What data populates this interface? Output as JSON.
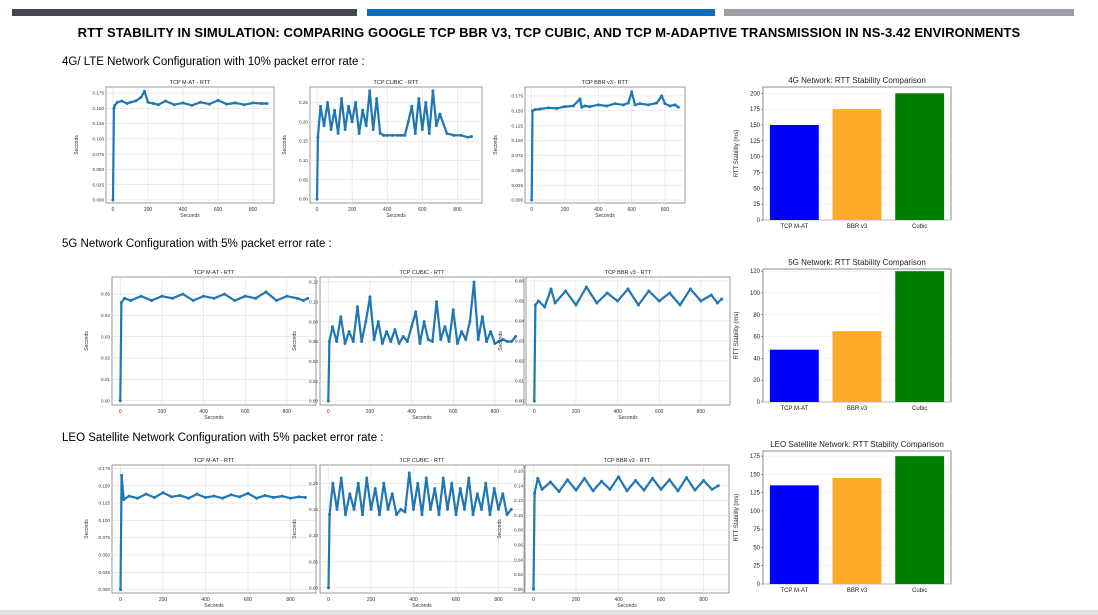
{
  "page": {
    "title": "RTT STABILITY IN SIMULATION: COMPARING GOOGLE TCP BBR V3, TCP CUBIC, AND TCP M-ADAPTIVE TRANSMISSION IN NS-3.42 ENVIRONMENTS",
    "colors": {
      "strip_dark": "#414651",
      "strip_blue": "#0f6cbd",
      "strip_gray": "#9aa0a6",
      "line_blue": "#1f77b4",
      "bar_tcp_mat": "#0000ff",
      "bar_bbr": "#ffa929",
      "bar_cubic": "#008000"
    }
  },
  "sections": [
    {
      "label": "4G/ LTE Network Configuration with 10% packet error rate :"
    },
    {
      "label": "5G Network Configuration with 5% packet error rate :"
    },
    {
      "label": "LEO Satellite Network Configuration with 5% packet error rate :"
    }
  ],
  "chart_data": [
    {
      "id": "4g-mat",
      "type": "line",
      "title": "TCP M-AT - RTT",
      "xlabel": "Seconds",
      "ylabel": "Seconds",
      "xlim": [
        -40,
        920
      ],
      "ylim": [
        -0.005,
        0.185
      ],
      "xticks": [
        0,
        200,
        400,
        600,
        800
      ],
      "yticks": [
        0.0,
        0.025,
        0.05,
        0.075,
        0.1,
        0.125,
        0.15,
        0.175
      ],
      "ytick_labels": [
        "0.000",
        "0.025",
        "0.050",
        "0.075",
        "0.100",
        "0.125",
        "0.150",
        "0.175"
      ],
      "x": [
        0,
        5,
        10,
        25,
        50,
        80,
        100,
        130,
        160,
        180,
        200,
        230,
        260,
        300,
        350,
        400,
        450,
        500,
        550,
        600,
        650,
        700,
        750,
        800,
        850,
        880
      ],
      "y": [
        0.0,
        0.15,
        0.155,
        0.16,
        0.162,
        0.158,
        0.16,
        0.162,
        0.168,
        0.178,
        0.16,
        0.158,
        0.156,
        0.162,
        0.156,
        0.159,
        0.155,
        0.16,
        0.157,
        0.163,
        0.157,
        0.159,
        0.156,
        0.159,
        0.158,
        0.158
      ]
    },
    {
      "id": "4g-cubic",
      "type": "line",
      "title": "TCP CUBIC - RTT",
      "xlabel": "Seconds",
      "ylabel": "Seconds",
      "xlim": [
        -40,
        940
      ],
      "ylim": [
        -0.01,
        0.29
      ],
      "xticks": [
        0,
        200,
        400,
        600,
        800
      ],
      "yticks": [
        0.0,
        0.05,
        0.1,
        0.15,
        0.2,
        0.25
      ],
      "ytick_labels": [
        "0.00",
        "0.05",
        "0.10",
        "0.15",
        "0.20",
        "0.25"
      ],
      "x": [
        0,
        5,
        20,
        40,
        60,
        80,
        100,
        120,
        140,
        160,
        180,
        200,
        220,
        240,
        260,
        280,
        300,
        320,
        340,
        360,
        380,
        400,
        430,
        460,
        480,
        500,
        520,
        540,
        560,
        580,
        600,
        620,
        640,
        660,
        680,
        700,
        740,
        780,
        820,
        860,
        880
      ],
      "y": [
        0.0,
        0.16,
        0.24,
        0.19,
        0.25,
        0.18,
        0.23,
        0.17,
        0.26,
        0.18,
        0.24,
        0.2,
        0.25,
        0.17,
        0.23,
        0.19,
        0.28,
        0.18,
        0.26,
        0.17,
        0.165,
        0.165,
        0.165,
        0.165,
        0.165,
        0.165,
        0.2,
        0.24,
        0.17,
        0.26,
        0.18,
        0.25,
        0.17,
        0.28,
        0.19,
        0.22,
        0.17,
        0.165,
        0.165,
        0.16,
        0.162
      ]
    },
    {
      "id": "4g-bbr",
      "type": "line",
      "title": "TCP BBR v3 - RTT",
      "xlabel": "Seconds",
      "ylabel": "Seconds",
      "xlim": [
        -40,
        920
      ],
      "ylim": [
        -0.005,
        0.19
      ],
      "xticks": [
        0,
        200,
        400,
        600,
        800
      ],
      "yticks": [
        0.0,
        0.025,
        0.05,
        0.075,
        0.1,
        0.125,
        0.15,
        0.175
      ],
      "ytick_labels": [
        "0.000",
        "0.025",
        "0.050",
        "0.075",
        "0.100",
        "0.125",
        "0.150",
        "0.175"
      ],
      "x": [
        0,
        5,
        20,
        50,
        100,
        150,
        200,
        250,
        290,
        300,
        320,
        350,
        400,
        450,
        500,
        550,
        580,
        600,
        620,
        650,
        700,
        750,
        780,
        800,
        830,
        860,
        880
      ],
      "y": [
        0.0,
        0.15,
        0.152,
        0.153,
        0.155,
        0.154,
        0.157,
        0.158,
        0.17,
        0.156,
        0.158,
        0.157,
        0.16,
        0.158,
        0.162,
        0.16,
        0.163,
        0.182,
        0.16,
        0.162,
        0.16,
        0.163,
        0.175,
        0.162,
        0.158,
        0.16,
        0.156
      ]
    },
    {
      "id": "4g-bar",
      "type": "bar",
      "title": "4G Network: RTT Stability Comparison",
      "xlabel": "",
      "ylabel": "RTT Stability (ms)",
      "ylim": [
        0,
        210
      ],
      "yticks": [
        0,
        25,
        50,
        75,
        100,
        125,
        150,
        175,
        200
      ],
      "categories": [
        "TCP M-AT",
        "BBR v3",
        "Cubic"
      ],
      "values": [
        150,
        175,
        200
      ],
      "colors": [
        "#0000ff",
        "#ffa929",
        "#008000"
      ]
    },
    {
      "id": "5g-mat",
      "type": "line",
      "title": "TCP M-AT - RTT",
      "xlabel": "Seconds",
      "ylabel": "Seconds",
      "xlim": [
        -40,
        940
      ],
      "ylim": [
        -0.002,
        0.058
      ],
      "xticks": [
        0,
        200,
        400,
        600,
        800
      ],
      "yticks": [
        0.0,
        0.01,
        0.02,
        0.03,
        0.04,
        0.05
      ],
      "ytick_labels": [
        "0.00",
        "0.01",
        "0.02",
        "0.03",
        "0.04",
        "0.05"
      ],
      "x": [
        0,
        5,
        20,
        50,
        100,
        150,
        200,
        250,
        300,
        350,
        400,
        450,
        500,
        550,
        600,
        650,
        700,
        750,
        800,
        850,
        880,
        900
      ],
      "y": [
        0.0,
        0.046,
        0.048,
        0.047,
        0.049,
        0.047,
        0.049,
        0.048,
        0.05,
        0.047,
        0.049,
        0.048,
        0.05,
        0.047,
        0.049,
        0.048,
        0.051,
        0.047,
        0.049,
        0.048,
        0.047,
        0.048
      ]
    },
    {
      "id": "5g-cubic",
      "type": "line",
      "title": "TCP CUBIC - RTT",
      "xlabel": "Seconds",
      "ylabel": "Seconds",
      "xlim": [
        -40,
        940
      ],
      "ylim": [
        -0.004,
        0.125
      ],
      "xticks": [
        0,
        200,
        400,
        600,
        800
      ],
      "yticks": [
        0.0,
        0.02,
        0.04,
        0.06,
        0.08,
        0.1,
        0.12
      ],
      "ytick_labels": [
        "0.00",
        "0.02",
        "0.04",
        "0.06",
        "0.08",
        "0.10",
        "0.12"
      ],
      "x": [
        0,
        5,
        20,
        40,
        60,
        80,
        100,
        120,
        140,
        160,
        180,
        200,
        220,
        240,
        260,
        280,
        300,
        320,
        340,
        360,
        380,
        400,
        420,
        440,
        460,
        480,
        500,
        520,
        540,
        560,
        580,
        600,
        620,
        640,
        660,
        680,
        700,
        720,
        740,
        760,
        780,
        800,
        820,
        840,
        860,
        880,
        900
      ],
      "y": [
        0.0,
        0.06,
        0.075,
        0.06,
        0.085,
        0.058,
        0.07,
        0.06,
        0.095,
        0.06,
        0.08,
        0.105,
        0.062,
        0.08,
        0.058,
        0.07,
        0.06,
        0.072,
        0.058,
        0.065,
        0.06,
        0.075,
        0.09,
        0.058,
        0.08,
        0.062,
        0.06,
        0.1,
        0.062,
        0.075,
        0.06,
        0.092,
        0.058,
        0.07,
        0.062,
        0.08,
        0.12,
        0.062,
        0.085,
        0.06,
        0.07,
        0.058,
        0.06,
        0.062,
        0.06,
        0.06,
        0.065
      ]
    },
    {
      "id": "5g-bbr",
      "type": "line",
      "title": "TCP BBR v3 - RTT",
      "xlabel": "Seconds",
      "ylabel": "Seconds",
      "xlim": [
        -40,
        940
      ],
      "ylim": [
        -0.002,
        0.062
      ],
      "xticks": [
        0,
        200,
        400,
        600,
        800
      ],
      "yticks": [
        0.0,
        0.01,
        0.02,
        0.03,
        0.04,
        0.05,
        0.06
      ],
      "ytick_labels": [
        "0.00",
        "0.01",
        "0.02",
        "0.03",
        "0.04",
        "0.05",
        "0.06"
      ],
      "x": [
        0,
        5,
        20,
        50,
        80,
        100,
        150,
        200,
        250,
        300,
        350,
        400,
        450,
        500,
        550,
        600,
        650,
        700,
        750,
        800,
        850,
        880,
        900
      ],
      "y": [
        0.0,
        0.048,
        0.05,
        0.047,
        0.056,
        0.049,
        0.055,
        0.048,
        0.057,
        0.049,
        0.054,
        0.05,
        0.056,
        0.048,
        0.055,
        0.05,
        0.054,
        0.048,
        0.056,
        0.05,
        0.053,
        0.049,
        0.051
      ]
    },
    {
      "id": "5g-bar",
      "type": "bar",
      "title": "5G Network: RTT Stability Comparison",
      "xlabel": "",
      "ylabel": "RTT Stability (ms)",
      "ylim": [
        0,
        122
      ],
      "yticks": [
        0,
        20,
        40,
        60,
        80,
        100,
        120
      ],
      "categories": [
        "TCP M-AT",
        "BBR v3",
        "Cubic"
      ],
      "values": [
        48,
        65,
        120
      ],
      "colors": [
        "#0000ff",
        "#ffa929",
        "#008000"
      ]
    },
    {
      "id": "leo-mat",
      "type": "line",
      "title": "TCP M-AT - RTT",
      "xlabel": "Seconds",
      "ylabel": "Seconds",
      "xlim": [
        -40,
        920
      ],
      "ylim": [
        -0.005,
        0.18
      ],
      "xticks": [
        0,
        200,
        400,
        600,
        800
      ],
      "yticks": [
        0.0,
        0.025,
        0.05,
        0.075,
        0.1,
        0.125,
        0.15,
        0.175
      ],
      "ytick_labels": [
        "0.000",
        "0.025",
        "0.050",
        "0.075",
        "0.100",
        "0.125",
        "0.150",
        "0.175"
      ],
      "x": [
        0,
        5,
        15,
        40,
        80,
        120,
        160,
        200,
        240,
        280,
        320,
        360,
        400,
        440,
        480,
        520,
        560,
        600,
        640,
        680,
        720,
        760,
        800,
        840,
        870
      ],
      "y": [
        0.0,
        0.165,
        0.13,
        0.135,
        0.132,
        0.138,
        0.133,
        0.14,
        0.134,
        0.136,
        0.132,
        0.138,
        0.133,
        0.135,
        0.132,
        0.137,
        0.134,
        0.139,
        0.132,
        0.136,
        0.133,
        0.135,
        0.132,
        0.134,
        0.133
      ]
    },
    {
      "id": "leo-cubic",
      "type": "line",
      "title": "TCP CUBIC - RTT",
      "xlabel": "Seconds",
      "ylabel": "Seconds",
      "xlim": [
        -40,
        920
      ],
      "ylim": [
        -0.01,
        0.235
      ],
      "xticks": [
        0,
        200,
        400,
        600,
        800
      ],
      "yticks": [
        0.0,
        0.05,
        0.1,
        0.15,
        0.2
      ],
      "ytick_labels": [
        "0.00",
        "0.05",
        "0.10",
        "0.15",
        "0.20"
      ],
      "x": [
        0,
        5,
        20,
        40,
        60,
        80,
        100,
        120,
        140,
        160,
        180,
        200,
        220,
        240,
        260,
        280,
        300,
        320,
        340,
        360,
        380,
        400,
        420,
        440,
        460,
        480,
        500,
        520,
        540,
        560,
        580,
        600,
        620,
        640,
        660,
        680,
        700,
        720,
        740,
        760,
        780,
        800,
        820,
        840,
        860
      ],
      "y": [
        0.0,
        0.14,
        0.2,
        0.15,
        0.21,
        0.14,
        0.18,
        0.15,
        0.2,
        0.14,
        0.21,
        0.15,
        0.19,
        0.14,
        0.2,
        0.15,
        0.18,
        0.14,
        0.15,
        0.145,
        0.22,
        0.15,
        0.2,
        0.14,
        0.21,
        0.15,
        0.19,
        0.14,
        0.21,
        0.15,
        0.2,
        0.14,
        0.19,
        0.15,
        0.21,
        0.14,
        0.18,
        0.15,
        0.2,
        0.14,
        0.19,
        0.15,
        0.18,
        0.14,
        0.15
      ]
    },
    {
      "id": "leo-bbr",
      "type": "line",
      "title": "TCP BBR v3 - RTT",
      "xlabel": "Seconds",
      "ylabel": "Seconds",
      "xlim": [
        -40,
        920
      ],
      "ylim": [
        -0.005,
        0.168
      ],
      "xticks": [
        0,
        200,
        400,
        600,
        800
      ],
      "yticks": [
        0.0,
        0.02,
        0.04,
        0.06,
        0.08,
        0.1,
        0.12,
        0.14,
        0.16
      ],
      "ytick_labels": [
        "0.00",
        "0.02",
        "0.04",
        "0.06",
        "0.08",
        "0.10",
        "0.12",
        "0.14",
        "0.16"
      ],
      "x": [
        0,
        5,
        20,
        40,
        80,
        120,
        160,
        200,
        240,
        280,
        320,
        360,
        400,
        440,
        480,
        520,
        560,
        600,
        640,
        680,
        720,
        760,
        800,
        840,
        870
      ],
      "y": [
        0.0,
        0.13,
        0.15,
        0.135,
        0.145,
        0.132,
        0.148,
        0.134,
        0.15,
        0.133,
        0.146,
        0.135,
        0.152,
        0.133,
        0.147,
        0.134,
        0.15,
        0.135,
        0.148,
        0.133,
        0.151,
        0.134,
        0.147,
        0.135,
        0.14
      ]
    },
    {
      "id": "leo-bar",
      "type": "bar",
      "title": "LEO Satellite Network: RTT Stability Comparison",
      "xlabel": "",
      "ylabel": "RTT Stability (ms)",
      "ylim": [
        0,
        182
      ],
      "yticks": [
        0,
        25,
        50,
        75,
        100,
        125,
        150,
        175
      ],
      "categories": [
        "TCP M-AT",
        "BBR v3",
        "Cubic"
      ],
      "values": [
        135,
        145,
        175
      ],
      "colors": [
        "#0000ff",
        "#ffa929",
        "#008000"
      ]
    }
  ]
}
